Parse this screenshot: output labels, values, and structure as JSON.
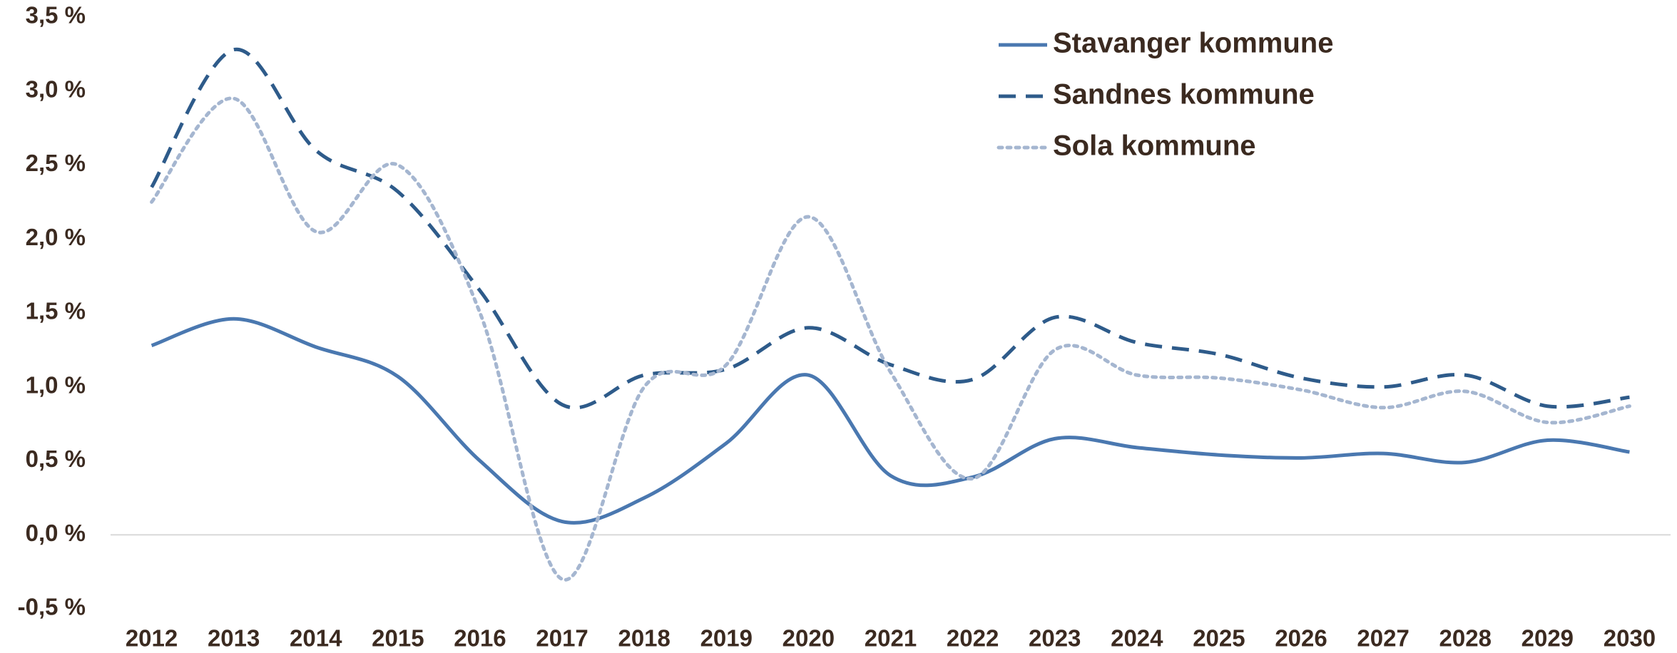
{
  "chart_data": {
    "type": "line",
    "categories": [
      "2012",
      "2013",
      "2014",
      "2015",
      "2016",
      "2017",
      "2018",
      "2019",
      "2020",
      "2021",
      "2022",
      "2023",
      "2024",
      "2025",
      "2026",
      "2027",
      "2028",
      "2029",
      "2030"
    ],
    "series": [
      {
        "name": "Stavanger kommune",
        "color": "#4a78b0",
        "dash": "solid",
        "values": [
          1.28,
          1.46,
          1.27,
          1.07,
          0.5,
          0.09,
          0.25,
          0.62,
          1.08,
          0.4,
          0.39,
          0.65,
          0.59,
          0.54,
          0.52,
          0.55,
          0.49,
          0.64,
          0.56
        ]
      },
      {
        "name": "Sandnes kommune",
        "color": "#2e5b8a",
        "dash": "dashed",
        "values": [
          2.35,
          3.28,
          2.6,
          2.32,
          1.65,
          0.88,
          1.08,
          1.12,
          1.4,
          1.15,
          1.05,
          1.47,
          1.3,
          1.22,
          1.06,
          1.0,
          1.08,
          0.87,
          0.93
        ]
      },
      {
        "name": "Sola kommune",
        "color": "#a5b6d0",
        "dash": "dotted",
        "values": [
          2.25,
          2.95,
          2.05,
          2.5,
          1.5,
          -0.3,
          1.0,
          1.15,
          2.15,
          1.1,
          0.38,
          1.25,
          1.08,
          1.06,
          0.98,
          0.86,
          0.97,
          0.76,
          0.87
        ]
      }
    ],
    "ylim": [
      -0.5,
      3.5
    ],
    "yticks": [
      {
        "value": -0.5,
        "label": "-0,5 %"
      },
      {
        "value": 0,
        "label": "0,0 %"
      },
      {
        "value": 0.5,
        "label": "0,5 %"
      },
      {
        "value": 1,
        "label": "1,0 %"
      },
      {
        "value": 1.5,
        "label": "1,5 %"
      },
      {
        "value": 2,
        "label": "2,0 %"
      },
      {
        "value": 2.5,
        "label": "2,5 %"
      },
      {
        "value": 3,
        "label": "3,0 %"
      },
      {
        "value": 3.5,
        "label": "3,5 %"
      }
    ],
    "grid": false,
    "legend": "top-right"
  }
}
